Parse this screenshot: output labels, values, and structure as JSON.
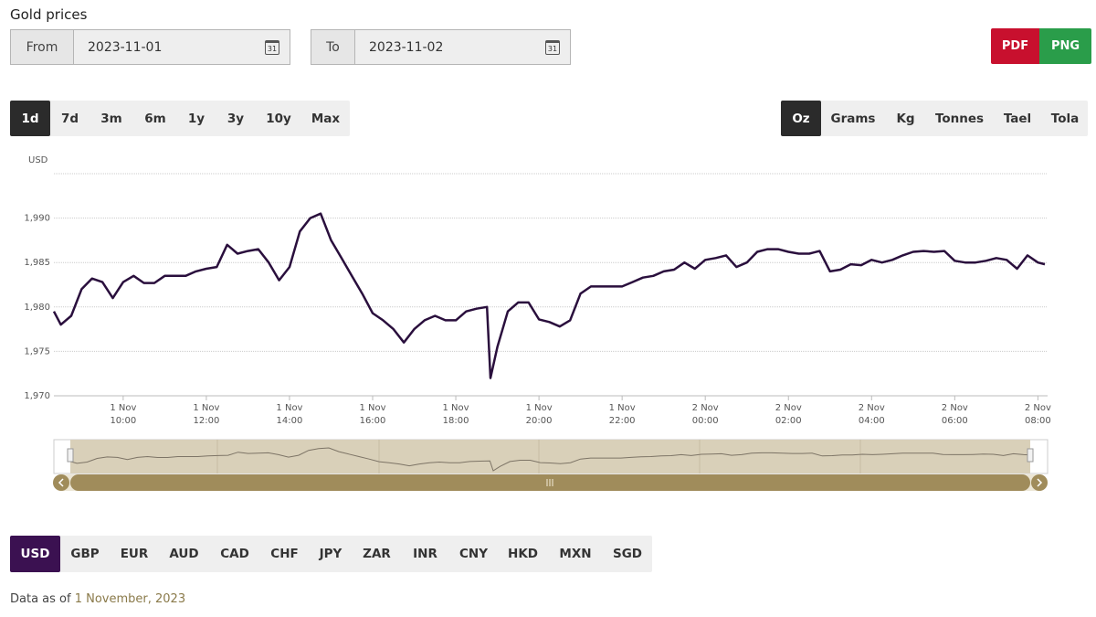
{
  "header": {
    "title": "Gold prices"
  },
  "date_range": {
    "from_label": "From",
    "from": "2023-11-01",
    "to_label": "To",
    "to": "2023-11-02"
  },
  "export": {
    "pdf": "PDF",
    "png": "PNG"
  },
  "periods": {
    "options": [
      "1d",
      "7d",
      "3m",
      "6m",
      "1y",
      "3y",
      "10y",
      "Max"
    ],
    "selected": "1d"
  },
  "units": {
    "options": [
      "Oz",
      "Grams",
      "Kg",
      "Tonnes",
      "Tael",
      "Tola"
    ],
    "selected": "Oz"
  },
  "currencies": {
    "options": [
      "USD",
      "GBP",
      "EUR",
      "AUD",
      "CAD",
      "CHF",
      "JPY",
      "ZAR",
      "INR",
      "CNY",
      "HKD",
      "MXN",
      "SGD"
    ],
    "selected": "USD"
  },
  "footer": {
    "prefix": "Data as of",
    "date": "1 November, 2023"
  },
  "chart_data": {
    "type": "line",
    "y_label": "USD",
    "color": "#2a0f3d",
    "grid": true,
    "ylim": [
      1970,
      1995
    ],
    "yticks": [
      {
        "value": 1970,
        "label": "1,970"
      },
      {
        "value": 1975,
        "label": "1,975"
      },
      {
        "value": 1980,
        "label": "1,980"
      },
      {
        "value": 1985,
        "label": "1,985"
      },
      {
        "value": 1990,
        "label": "1,990"
      }
    ],
    "xlim": [
      "1 Nov 08:20",
      "2 Nov 08:14"
    ],
    "xticks": [
      "1 Nov 10:00",
      "1 Nov 12:00",
      "1 Nov 14:00",
      "1 Nov 16:00",
      "1 Nov 18:00",
      "1 Nov 20:00",
      "1 Nov 22:00",
      "2 Nov 00:00",
      "2 Nov 02:00",
      "2 Nov 04:00",
      "2 Nov 06:00",
      "2 Nov 08:00"
    ],
    "x": [
      "1 Nov 08:20",
      "1 Nov 08:30",
      "1 Nov 08:45",
      "1 Nov 09:00",
      "1 Nov 09:15",
      "1 Nov 09:30",
      "1 Nov 09:45",
      "1 Nov 10:00",
      "1 Nov 10:15",
      "1 Nov 10:30",
      "1 Nov 10:45",
      "1 Nov 11:00",
      "1 Nov 11:15",
      "1 Nov 11:30",
      "1 Nov 11:45",
      "1 Nov 12:00",
      "1 Nov 12:15",
      "1 Nov 12:30",
      "1 Nov 12:45",
      "1 Nov 13:00",
      "1 Nov 13:15",
      "1 Nov 13:30",
      "1 Nov 13:45",
      "1 Nov 14:00",
      "1 Nov 14:15",
      "1 Nov 14:30",
      "1 Nov 14:45",
      "1 Nov 15:00",
      "1 Nov 15:15",
      "1 Nov 15:30",
      "1 Nov 15:45",
      "1 Nov 16:00",
      "1 Nov 16:15",
      "1 Nov 16:30",
      "1 Nov 16:45",
      "1 Nov 17:00",
      "1 Nov 17:15",
      "1 Nov 17:30",
      "1 Nov 17:45",
      "1 Nov 18:00",
      "1 Nov 18:15",
      "1 Nov 18:30",
      "1 Nov 18:45",
      "1 Nov 18:50",
      "1 Nov 19:00",
      "1 Nov 19:15",
      "1 Nov 19:30",
      "1 Nov 19:45",
      "1 Nov 20:00",
      "1 Nov 20:15",
      "1 Nov 20:30",
      "1 Nov 20:45",
      "1 Nov 21:00",
      "1 Nov 21:15",
      "1 Nov 21:30",
      "1 Nov 21:45",
      "1 Nov 22:00",
      "1 Nov 22:15",
      "1 Nov 22:30",
      "1 Nov 22:45",
      "1 Nov 23:00",
      "1 Nov 23:15",
      "1 Nov 23:30",
      "1 Nov 23:45",
      "2 Nov 00:00",
      "2 Nov 00:15",
      "2 Nov 00:30",
      "2 Nov 00:45",
      "2 Nov 01:00",
      "2 Nov 01:15",
      "2 Nov 01:30",
      "2 Nov 01:45",
      "2 Nov 02:00",
      "2 Nov 02:15",
      "2 Nov 02:30",
      "2 Nov 02:45",
      "2 Nov 03:00",
      "2 Nov 03:15",
      "2 Nov 03:30",
      "2 Nov 03:45",
      "2 Nov 04:00",
      "2 Nov 04:15",
      "2 Nov 04:30",
      "2 Nov 04:45",
      "2 Nov 05:00",
      "2 Nov 05:15",
      "2 Nov 05:30",
      "2 Nov 05:45",
      "2 Nov 06:00",
      "2 Nov 06:15",
      "2 Nov 06:30",
      "2 Nov 06:45",
      "2 Nov 07:00",
      "2 Nov 07:15",
      "2 Nov 07:30",
      "2 Nov 07:45",
      "2 Nov 08:00",
      "2 Nov 08:10"
    ],
    "values": [
      1979.5,
      1978,
      1979,
      1982,
      1983.2,
      1982.8,
      1981,
      1982.8,
      1983.5,
      1982.7,
      1982.7,
      1983.5,
      1983.5,
      1983.5,
      1984,
      1984.3,
      1984.5,
      1987,
      1986,
      1986.3,
      1986.5,
      1985,
      1983,
      1984.5,
      1988.5,
      1990,
      1990.5,
      1987.5,
      1985.5,
      1983.5,
      1981.5,
      1979.3,
      1978.5,
      1977.5,
      1976,
      1977.5,
      1978.5,
      1979,
      1978.5,
      1978.5,
      1979.5,
      1979.8,
      1980,
      1972,
      1975.5,
      1979.5,
      1980.5,
      1980.5,
      1978.6,
      1978.3,
      1977.8,
      1978.5,
      1981.5,
      1982.3,
      1982.3,
      1982.3,
      1982.3,
      1982.8,
      1983.3,
      1983.5,
      1984,
      1984.2,
      1985,
      1984.3,
      1985.3,
      1985.5,
      1985.8,
      1984.5,
      1985,
      1986.2,
      1986.5,
      1986.5,
      1986.2,
      1986,
      1986,
      1986.3,
      1984,
      1984.2,
      1984.8,
      1984.7,
      1985.3,
      1985,
      1985.3,
      1985.8,
      1986.2,
      1986.3,
      1986.2,
      1986.3,
      1985.2,
      1985,
      1985,
      1985.2,
      1985.5,
      1985.3,
      1984.3,
      1985.8,
      1985,
      1984.8
    ]
  }
}
